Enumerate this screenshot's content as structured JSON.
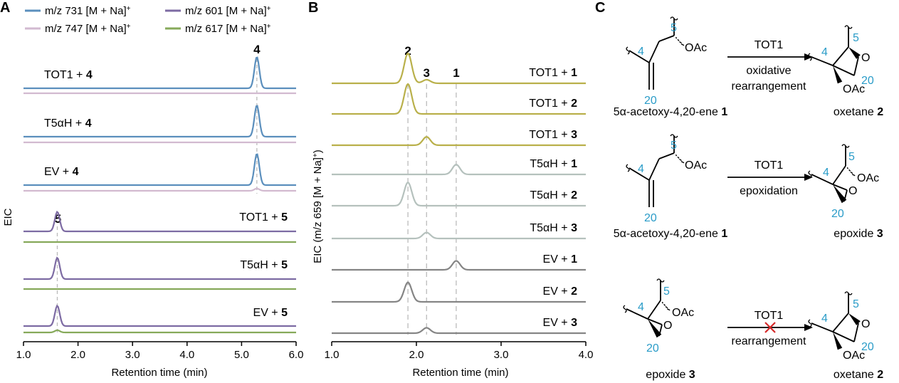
{
  "colors": {
    "blue": "#5b8fbd",
    "pink": "#d2bad0",
    "purple": "#7d6ba3",
    "green": "#86a95a",
    "olive": "#b9b04a",
    "sage": "#b5c1bd",
    "gray": "#858585",
    "teal": "#2a9cc8",
    "red": "#d62828"
  },
  "panels": {
    "a": "A",
    "b": "B",
    "c": "C"
  },
  "chart_data": [
    {
      "type": "line",
      "panel": "A",
      "title": "",
      "xlabel": "Retention time (min)",
      "ylabel": "EIC",
      "xlim": [
        1.0,
        6.0
      ],
      "xticks": [
        "1.0",
        "2.0",
        "3.0",
        "4.0",
        "5.0",
        "6.0"
      ],
      "legend": [
        {
          "label": "m/z 731 [M + Na]",
          "sup": "+",
          "color": "blue"
        },
        {
          "label": "m/z 747 [M + Na]",
          "sup": "+",
          "color": "pink"
        },
        {
          "label": "m/z 601 [M + Na]",
          "sup": "+",
          "color": "purple"
        },
        {
          "label": "m/z 617 [M + Na]",
          "sup": "+",
          "color": "green"
        }
      ],
      "peak_markers": [
        {
          "label": "4",
          "x": 5.28
        },
        {
          "label": "5",
          "x": 1.62
        }
      ],
      "traces": [
        {
          "name": "TOT1 + ",
          "bold": "4",
          "main": "blue",
          "sub": "pink",
          "peak_x": 5.28,
          "peak_h": 1.0,
          "sub_h": 0
        },
        {
          "name": "T5αH + ",
          "bold": "4",
          "main": "blue",
          "sub": "pink",
          "peak_x": 5.28,
          "peak_h": 1.0,
          "sub_h": 0
        },
        {
          "name": "EV + ",
          "bold": "4",
          "main": "blue",
          "sub": "pink",
          "peak_x": 5.28,
          "peak_h": 1.0,
          "sub_h": 0.08
        },
        {
          "name": "TOT1 + ",
          "bold": "5",
          "main": "purple",
          "sub": "green",
          "peak_x": 1.62,
          "peak_h": 0.55,
          "sub_h": 0
        },
        {
          "name": "T5αH + ",
          "bold": "5",
          "main": "purple",
          "sub": "green",
          "peak_x": 1.62,
          "peak_h": 0.6,
          "sub_h": 0
        },
        {
          "name": "EV + ",
          "bold": "5",
          "main": "purple",
          "sub": "green",
          "peak_x": 1.62,
          "peak_h": 0.57,
          "sub_h": 0.08
        }
      ]
    },
    {
      "type": "line",
      "panel": "B",
      "title": "",
      "xlabel": "Retention time (min)",
      "ylabel": "EIC (m/z 659 [M + Na]",
      "ylabel_sup": "+",
      "ylabel_close": ")",
      "xlim": [
        1.0,
        4.0
      ],
      "xticks": [
        "1.0",
        "2.0",
        "3.0",
        "4.0"
      ],
      "peak_markers": [
        {
          "label": "2",
          "x": 1.9
        },
        {
          "label": "3",
          "x": 2.12
        },
        {
          "label": "1",
          "x": 2.47
        }
      ],
      "traces": [
        {
          "name": "TOT1 + ",
          "bold": "1",
          "color": "olive",
          "peaks": [
            [
              1.9,
              1.0
            ],
            [
              2.12,
              0.12
            ]
          ]
        },
        {
          "name": "TOT1 + ",
          "bold": "2",
          "color": "olive",
          "peaks": [
            [
              1.9,
              1.0
            ]
          ]
        },
        {
          "name": "TOT1 + ",
          "bold": "3",
          "color": "olive",
          "peaks": [
            [
              2.12,
              0.28
            ]
          ]
        },
        {
          "name": "T5αH + ",
          "bold": "1",
          "color": "sage",
          "peaks": [
            [
              2.47,
              0.33
            ]
          ]
        },
        {
          "name": "T5αH + ",
          "bold": "2",
          "color": "sage",
          "peaks": [
            [
              1.9,
              0.78
            ]
          ]
        },
        {
          "name": "T5αH + ",
          "bold": "3",
          "color": "sage",
          "peaks": [
            [
              2.12,
              0.2
            ]
          ]
        },
        {
          "name": "EV + ",
          "bold": "1",
          "color": "gray",
          "peaks": [
            [
              2.47,
              0.3
            ]
          ]
        },
        {
          "name": "EV + ",
          "bold": "2",
          "color": "gray",
          "peaks": [
            [
              1.9,
              0.65
            ]
          ]
        },
        {
          "name": "EV + ",
          "bold": "3",
          "color": "gray",
          "peaks": [
            [
              2.12,
              0.18
            ]
          ]
        }
      ]
    }
  ],
  "schemes": [
    {
      "reactant_name": "5α-acetoxy-4,20-ene ",
      "reactant_num": "1",
      "product_name": "oxetane ",
      "product_num": "2",
      "enzyme": "TOT1",
      "below1": "oxidative",
      "below2": "rearrangement",
      "blocked": false
    },
    {
      "reactant_name": "5α-acetoxy-4,20-ene ",
      "reactant_num": "1",
      "product_name": "epoxide ",
      "product_num": "3",
      "enzyme": "TOT1",
      "below1": "epoxidation",
      "below2": "",
      "blocked": false
    },
    {
      "reactant_name": "epoxide ",
      "reactant_num": "3",
      "product_name": "oxetane ",
      "product_num": "2",
      "enzyme": "TOT1",
      "below1": "rearrangement",
      "below2": "",
      "blocked": true
    }
  ],
  "struct_labels": {
    "c4": "4",
    "c5": "5",
    "c20": "20",
    "oac": "OAc",
    "o": "O"
  }
}
